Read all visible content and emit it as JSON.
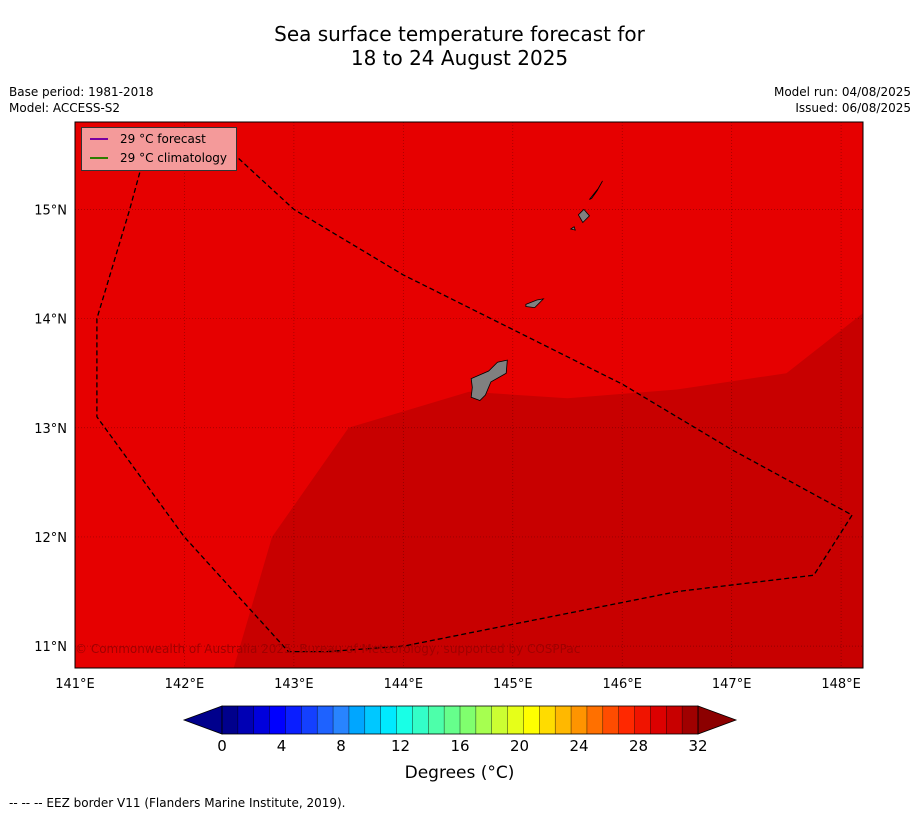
{
  "header": {
    "title_line1": "Sea surface temperature forecast for",
    "title_line2": "18 to 24 August 2025",
    "base_period": "Base period: 1981-2018",
    "model": "Model: ACCESS-S2",
    "model_run": "Model run: 04/08/2025",
    "issued": "Issued: 06/08/2025"
  },
  "legend": {
    "forecast_label": "29 °C  forecast",
    "climatology_label": "29 °C  climatology",
    "forecast_color": "#7a00a0",
    "climatology_color": "#2e7d00"
  },
  "copyright": "© Commonwealth of Australia 2025, Bureau of Meteorology, supported by COSPPac",
  "colorbar": {
    "label": "Degrees (°C)",
    "ticks": [
      "0",
      "4",
      "8",
      "12",
      "16",
      "20",
      "24",
      "28",
      "32"
    ],
    "colors": [
      "#00008c",
      "#0000b4",
      "#0000dc",
      "#0000ff",
      "#0a1eff",
      "#1440ff",
      "#1e62ff",
      "#2884ff",
      "#00a6ff",
      "#00c8ff",
      "#00eaff",
      "#19ffe6",
      "#33ffc8",
      "#4dffaa",
      "#66ff8c",
      "#80ff6e",
      "#a6ff50",
      "#ccff32",
      "#e6ff19",
      "#ffff00",
      "#ffdc00",
      "#ffb800",
      "#ff9400",
      "#ff7000",
      "#ff4c00",
      "#ff2800",
      "#f01400",
      "#dc0000",
      "#c80000",
      "#a00000"
    ],
    "under_color": "#00008c",
    "over_color": "#8c0000"
  },
  "footer": "--  --  -- EEZ border V11 (Flanders Marine Institute, 2019).",
  "chart_data": {
    "type": "heatmap",
    "title": "Sea surface temperature forecast for 18 to 24 August 2025",
    "xlabel": "",
    "ylabel": "",
    "xlim": [
      141,
      148.2
    ],
    "ylim": [
      10.8,
      15.8
    ],
    "x_ticks": [
      "141°E",
      "142°E",
      "143°E",
      "144°E",
      "145°E",
      "146°E",
      "147°E",
      "148°E"
    ],
    "y_ticks": [
      "11°N",
      "12°N",
      "13°N",
      "14°N",
      "15°N"
    ],
    "x_tick_values": [
      141,
      142,
      143,
      144,
      145,
      146,
      147,
      148
    ],
    "y_tick_values": [
      11,
      12,
      13,
      14,
      15
    ],
    "grid": true,
    "legend_position": "top-left",
    "regions": [
      {
        "name": "28-29 °C",
        "color": "#e60000"
      },
      {
        "name": "29-30 °C",
        "color": "#c80000",
        "boundary": [
          [
            142.45,
            10.8
          ],
          [
            142.8,
            12.0
          ],
          [
            143.15,
            12.5
          ],
          [
            143.5,
            13.0
          ],
          [
            144.6,
            13.33
          ],
          [
            145.5,
            13.27
          ],
          [
            146.5,
            13.35
          ],
          [
            147.5,
            13.5
          ],
          [
            148.2,
            14.05
          ],
          [
            148.2,
            10.8
          ]
        ]
      }
    ],
    "eez_border": [
      [
        141.65,
        15.55
      ],
      [
        141.9,
        15.7
      ],
      [
        142.35,
        15.6
      ],
      [
        143.0,
        15.0
      ],
      [
        144.0,
        14.4
      ],
      [
        145.0,
        13.9
      ],
      [
        146.0,
        13.4
      ],
      [
        147.0,
        12.8
      ],
      [
        148.1,
        12.2
      ],
      [
        147.75,
        11.65
      ],
      [
        146.5,
        11.5
      ],
      [
        145.0,
        11.2
      ],
      [
        144.0,
        11.0
      ],
      [
        143.3,
        10.95
      ],
      [
        142.95,
        10.95
      ],
      [
        142.0,
        12.0
      ],
      [
        141.2,
        13.1
      ],
      [
        141.2,
        14.0
      ],
      [
        141.5,
        15.0
      ],
      [
        141.65,
        15.55
      ]
    ],
    "islands": [
      {
        "name": "",
        "polygon": [
          [
            144.62,
            13.45
          ],
          [
            144.78,
            13.52
          ],
          [
            144.86,
            13.6
          ],
          [
            144.95,
            13.62
          ],
          [
            144.94,
            13.5
          ],
          [
            144.8,
            13.42
          ],
          [
            144.75,
            13.3
          ],
          [
            144.7,
            13.25
          ],
          [
            144.62,
            13.28
          ],
          [
            144.63,
            13.37
          ]
        ]
      },
      {
        "name": "",
        "polygon": [
          [
            145.12,
            14.13
          ],
          [
            145.22,
            14.17
          ],
          [
            145.28,
            14.18
          ],
          [
            145.2,
            14.1
          ],
          [
            145.12,
            14.11
          ]
        ]
      },
      {
        "name": "",
        "polygon": [
          [
            145.6,
            14.95
          ],
          [
            145.65,
            15.0
          ],
          [
            145.7,
            14.94
          ],
          [
            145.64,
            14.88
          ]
        ]
      },
      {
        "name": "",
        "polygon": [
          [
            145.7,
            15.09
          ],
          [
            145.78,
            15.19
          ],
          [
            145.82,
            15.26
          ],
          [
            145.77,
            15.17
          ],
          [
            145.72,
            15.1
          ]
        ]
      },
      {
        "name": "",
        "polygon": [
          [
            145.53,
            14.82
          ],
          [
            145.56,
            14.84
          ],
          [
            145.57,
            14.81
          ]
        ]
      }
    ]
  }
}
